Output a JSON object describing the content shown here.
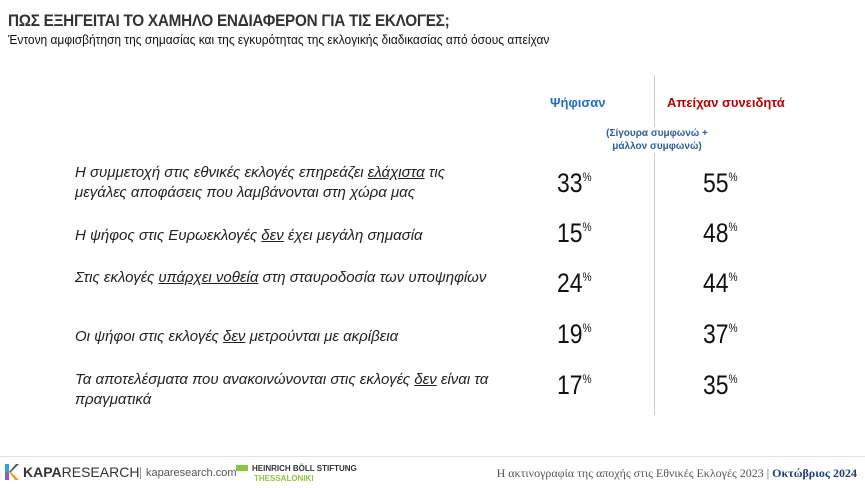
{
  "header": {
    "title": "ΠΩΣ ΕΞΗΓΕΙΤΑΙ ΤΟ ΧΑΜΗΛΟ ΕΝΔΙΑΦΕΡΟΝ ΓΙΑ ΤΙΣ ΕΚΛΟΓΕΣ;",
    "subtitle": "Έντονη αμφισβήτηση της σημασίας και της εγκυρότητας της εκλογικής διαδικασίας από όσους απείχαν"
  },
  "columns": {
    "voted": "Ψήφισαν",
    "abstained": "Απείχαν συνειδητά",
    "note_line1": "(Σίγουρα συμφωνώ +",
    "note_line2": "μάλλον συμφωνώ)",
    "voted_color": "#1f6fc5",
    "abstained_color": "#c00000"
  },
  "rows": [
    {
      "pre": "Η συμμετοχή στις εθνικές εκλογές επηρεάζει ",
      "u": "ελάχιστα",
      "post": " τις μεγάλες αποφάσεις που λαμβάνονται στη χώρα μας",
      "voted": "33",
      "abstained": "55"
    },
    {
      "pre": "Η ψήφος στις Ευρωεκλογές ",
      "u": "δεν",
      "post": " έχει μεγάλη σημασία",
      "voted": "15",
      "abstained": "48"
    },
    {
      "pre": "Στις εκλογές ",
      "u": "υπάρχει νοθεία",
      "post": " στη σταυροδοσία των υποψηφίων",
      "voted": "24",
      "abstained": "44"
    },
    {
      "pre": "Οι ψήφοι στις εκλογές ",
      "u": "δεν",
      "post": " μετρούνται με ακρίβεια",
      "voted": "19",
      "abstained": "37"
    },
    {
      "pre": "Τα αποτελέσματα που ανακοινώνονται στις εκλογές ",
      "u": "δεν",
      "post": " είναι τα πραγματικά",
      "voted": "17",
      "abstained": "35"
    }
  ],
  "percent": "%",
  "footer": {
    "brand_bold": "KAPA",
    "brand_rest": "RESEARCH",
    "site": "kaparesearch.com",
    "boll": "HEINRICH BÖLL STIFTUNG",
    "boll_city": "THESSALONIKI",
    "caption": "Η ακτινογραφία της αποχής στις Εθνικές Εκλογές 2023 | ",
    "date": "Οκτώβριος 2024"
  }
}
